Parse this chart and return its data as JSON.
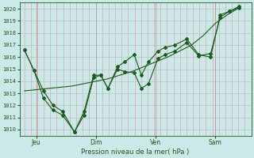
{
  "xlabel": "Pression niveau de la mer( hPa )",
  "ylim": [
    1009.5,
    1020.5
  ],
  "yticks": [
    1010,
    1011,
    1012,
    1013,
    1014,
    1015,
    1016,
    1017,
    1018,
    1019,
    1020
  ],
  "bg_color": "#cce8e8",
  "hgrid_color": "#aacccc",
  "vgrid_color": "#ddaaaa",
  "line_color": "#1a5c1a",
  "xtick_labels": [
    "Jeu",
    "Dim",
    "Ven",
    "Sam"
  ],
  "xtick_positions": [
    0.5,
    3.0,
    5.5,
    8.0
  ],
  "xlim": [
    -0.2,
    9.5
  ],
  "series_jagged_x": [
    0.0,
    0.4,
    0.8,
    1.2,
    1.6,
    2.1,
    2.5,
    2.9,
    3.2,
    3.5,
    3.9,
    4.2,
    4.6,
    4.9,
    5.2,
    5.6,
    5.9,
    6.3,
    6.8,
    7.3,
    7.8,
    8.2,
    8.6,
    9.0
  ],
  "series_jagged_y": [
    1016.6,
    1014.9,
    1013.2,
    1012.0,
    1011.5,
    1009.8,
    1011.5,
    1014.5,
    1014.5,
    1013.4,
    1015.0,
    1014.8,
    1014.7,
    1013.4,
    1013.8,
    1015.9,
    1016.2,
    1016.5,
    1017.2,
    1016.1,
    1016.3,
    1019.3,
    1019.8,
    1020.2
  ],
  "series_smooth_x": [
    0.0,
    0.5,
    1.0,
    1.5,
    2.0,
    2.5,
    3.0,
    3.5,
    4.0,
    4.5,
    5.0,
    5.5,
    6.0,
    6.5,
    7.0,
    7.5,
    8.0,
    8.5,
    9.0
  ],
  "series_smooth_y": [
    1013.2,
    1013.3,
    1013.4,
    1013.5,
    1013.6,
    1013.8,
    1014.0,
    1014.2,
    1014.5,
    1014.8,
    1015.2,
    1015.6,
    1016.0,
    1016.5,
    1017.0,
    1017.8,
    1018.8,
    1019.5,
    1020.1
  ],
  "series_upper_x": [
    0.0,
    0.4,
    0.8,
    1.2,
    1.6,
    2.1,
    2.5,
    2.9,
    3.2,
    3.5,
    3.9,
    4.2,
    4.6,
    4.9,
    5.2,
    5.6,
    5.9,
    6.3,
    6.8,
    7.3,
    7.8,
    8.2,
    8.6,
    9.0
  ],
  "series_upper_y": [
    1016.6,
    1014.9,
    1012.6,
    1011.6,
    1011.2,
    1009.8,
    1011.2,
    1014.3,
    1014.5,
    1013.4,
    1015.2,
    1015.6,
    1016.2,
    1014.5,
    1015.6,
    1016.5,
    1016.8,
    1017.0,
    1017.5,
    1016.2,
    1016.0,
    1019.5,
    1019.8,
    1020.1
  ]
}
